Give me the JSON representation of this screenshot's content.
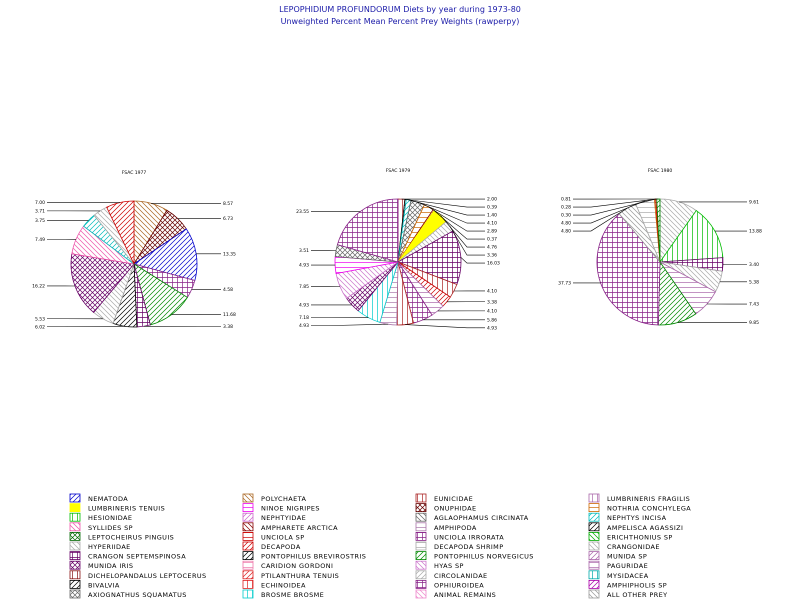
{
  "header": {
    "title": "LEPOPHIDIUM PROFUNDORUM Diets by year during 1973-80",
    "subtitle": "Unweighted Percent Mean Percent Prey Weights (rawperpy)"
  },
  "chart_data": [
    {
      "type": "pie",
      "title": "FSAC 1977",
      "slices": [
        {
          "prey": "POLYCHAETA",
          "value": 8.57,
          "label": "8.57"
        },
        {
          "prey": "ONUPHIDAE",
          "value": 6.73,
          "label": "6.73"
        },
        {
          "prey": "NEMATODA",
          "value": 13.35,
          "label": "13.35"
        },
        {
          "prey": "UNCIOLA IRRORATA",
          "value": 4.58,
          "label": "4.58"
        },
        {
          "prey": "PONTOPHILUS NORVEGICUS",
          "value": 11.68,
          "label": "11.68"
        },
        {
          "prey": "CRANGON SEPTEMSPINOSA",
          "value": 3.38,
          "label": "3.38"
        },
        {
          "prey": "BIVALVIA",
          "value": 6.02,
          "label": "6.02"
        },
        {
          "prey": "HYPERIIDAE",
          "value": 5.53,
          "label": "5.53"
        },
        {
          "prey": "MUNIDA IRIS",
          "value": 16.22,
          "label": "16.22"
        },
        {
          "prey": "SYLLIDES SP",
          "value": 7.49,
          "label": "7.49"
        },
        {
          "prey": "NEPHTYS INCISA",
          "value": 3.75,
          "label": "3.75"
        },
        {
          "prey": "CRANGONIDAE",
          "value": 3.71,
          "label": "3.71"
        },
        {
          "prey": "DECAPODA",
          "value": 7.0,
          "label": "7.00"
        }
      ]
    },
    {
      "type": "pie",
      "title": "FSAC 1979",
      "slices": [
        {
          "prey": "EUNICIDAE",
          "value": 2.0,
          "label": "2.00"
        },
        {
          "prey": "PONTOPHILUS BREVIROSTRIS",
          "value": 0.39,
          "label": "0.39"
        },
        {
          "prey": "NEPHTYS INCISA",
          "value": 1.4,
          "label": "1.40"
        },
        {
          "prey": "AXIOGNATHUS SQUAMATUS",
          "value": 4.1,
          "label": "4.10"
        },
        {
          "prey": "NOTHRIA CONCHYLEGA",
          "value": 2.89,
          "label": "2.89"
        },
        {
          "prey": "AMPHARETE ARCTICA",
          "value": 0.37,
          "label": "0.37"
        },
        {
          "prey": "LUMBRINERIS TENUIS",
          "value": 4.76,
          "label": "4.76"
        },
        {
          "prey": "CRANGONIDAE",
          "value": 3.36,
          "label": "3.36"
        },
        {
          "prey": "CRANGON SEPTEMSPINOSA",
          "value": 16.03,
          "label": "16.03"
        },
        {
          "prey": "EUNICIDAE",
          "value": 4.1,
          "label": "4.10"
        },
        {
          "prey": "DECAPODA",
          "value": 3.38,
          "label": "3.38"
        },
        {
          "prey": "PAGURIDAE",
          "value": 4.1,
          "label": "4.10"
        },
        {
          "prey": "UNCIOLA IRRORATA",
          "value": 5.86,
          "label": "5.86"
        },
        {
          "prey": "EUNICIDAE",
          "value": 4.93,
          "label": "4.93"
        },
        {
          "prey": "AMPHIPODA",
          "value": 4.93,
          "label": "4.93"
        },
        {
          "prey": "BROSME BROSME",
          "value": 7.18,
          "label": "7.18"
        },
        {
          "prey": "MUNIDA IRIS",
          "value": 4.93,
          "label": "4.93"
        },
        {
          "prey": "HYAS SP",
          "value": 7.85,
          "label": "7.85"
        },
        {
          "prey": "NINOE NIGRIPES",
          "value": 4.93,
          "label": "4.93"
        },
        {
          "prey": "AXIOGNATHUS SQUAMATUS",
          "value": 3.51,
          "label": "3.51"
        },
        {
          "prey": "UNCIOLA IRRORATA",
          "value": 23.55,
          "label": "23.55"
        }
      ]
    },
    {
      "type": "pie",
      "title": "FSAC 1980",
      "slices": [
        {
          "prey": "HYPERIIDAE",
          "value": 9.61,
          "label": "9.61"
        },
        {
          "prey": "HESIONIDAE",
          "value": 13.88,
          "label": "13.88"
        },
        {
          "prey": "CRANGON SEPTEMSPINOSA",
          "value": 3.4,
          "label": "3.40"
        },
        {
          "prey": "CRANGONIDAE",
          "value": 5.38,
          "label": "5.38"
        },
        {
          "prey": "PAGURIDAE",
          "value": 7.43,
          "label": "7.43"
        },
        {
          "prey": "PONTOPHILUS NORVEGICUS",
          "value": 9.85,
          "label": "9.85"
        },
        {
          "prey": "UNCIOLA IRRORATA",
          "value": 37.73,
          "label": "37.73"
        },
        {
          "prey": "ALL OTHER PREY",
          "value": 4.8,
          "label": "4.80"
        },
        {
          "prey": "DECAPODA SHRIMP",
          "value": 4.8,
          "label": "4.80"
        },
        {
          "prey": "NOTHRIA CONCHYLEGA",
          "value": 0.3,
          "label": "0.30"
        },
        {
          "prey": "UNCIOLA SP",
          "value": 0.28,
          "label": "0.28"
        },
        {
          "prey": "PONTOPHILUS NORVEGICUS",
          "value": 0.81,
          "label": "0.81"
        }
      ]
    }
  ],
  "legend": [
    {
      "name": "NEMATODA",
      "color": "#0000cc",
      "pattern": "hatch45"
    },
    {
      "name": "LUMBRINERIS TENUIS",
      "color": "#ffff00",
      "pattern": "solid"
    },
    {
      "name": "HESIONIDAE",
      "color": "#00bb00",
      "pattern": "vert"
    },
    {
      "name": "SYLLIDES SP",
      "color": "#ee55aa",
      "pattern": "hatch135"
    },
    {
      "name": "LEPTOCHEIRUS PINGUIS",
      "color": "#006600",
      "pattern": "cross"
    },
    {
      "name": "HYPERIIDAE",
      "color": "#aaaaaa",
      "pattern": "hatch135"
    },
    {
      "name": "CRANGON SEPTEMSPINOSA",
      "color": "#660066",
      "pattern": "grid"
    },
    {
      "name": "MUNIDA IRIS",
      "color": "#660066",
      "pattern": "cross"
    },
    {
      "name": "DICHELOPANDALUS LEPTOCERUS",
      "color": "#881111",
      "pattern": "vert"
    },
    {
      "name": "BIVALVIA",
      "color": "#000000",
      "pattern": "hatch45"
    },
    {
      "name": "AXIOGNATHUS SQUAMATUS",
      "color": "#666666",
      "pattern": "cross"
    },
    {
      "name": "POLYCHAETA",
      "color": "#aa6622",
      "pattern": "hatch135"
    },
    {
      "name": "NINOE NIGRIPES",
      "color": "#ee00ee",
      "pattern": "horiz"
    },
    {
      "name": "NEPHTYIDAE",
      "color": "#cc66cc",
      "pattern": "hatch45"
    },
    {
      "name": "AMPHARETE ARCTICA",
      "color": "#880000",
      "pattern": "hatch135"
    },
    {
      "name": "UNCIOLA SP",
      "color": "#cc0000",
      "pattern": "horiz"
    },
    {
      "name": "DECAPODA",
      "color": "#cc0000",
      "pattern": "hatch45"
    },
    {
      "name": "PONTOPHILUS BREVIROSTRIS",
      "color": "#000000",
      "pattern": "hatch45"
    },
    {
      "name": "CARIDION GORDONI",
      "color": "#ee77aa",
      "pattern": "horiz"
    },
    {
      "name": "PTILANTHURA TENUIS",
      "color": "#dd2222",
      "pattern": "hatch45"
    },
    {
      "name": "ECHINOIDEA",
      "color": "#dd2222",
      "pattern": "vert"
    },
    {
      "name": "BROSME BROSME",
      "color": "#00cccc",
      "pattern": "vert"
    },
    {
      "name": "EUNICIDAE",
      "color": "#aa2222",
      "pattern": "vert"
    },
    {
      "name": "ONUPHIDAE",
      "color": "#660000",
      "pattern": "cross"
    },
    {
      "name": "AGLAOPHAMUS CIRCINATA",
      "color": "#666666",
      "pattern": "hatch135"
    },
    {
      "name": "AMPHIPODA",
      "color": "#aa77aa",
      "pattern": "horiz"
    },
    {
      "name": "UNCIOLA IRRORATA",
      "color": "#882288",
      "pattern": "grid"
    },
    {
      "name": "DECAPODA SHRIMP",
      "color": "#aaaaaa",
      "pattern": "horiz"
    },
    {
      "name": "PONTOPHILUS NORVEGICUS",
      "color": "#008800",
      "pattern": "hatch45"
    },
    {
      "name": "HYAS SP",
      "color": "#cc77cc",
      "pattern": "hatch135"
    },
    {
      "name": "CIRCOLANIDAE",
      "color": "#aaaaaa",
      "pattern": "hatch45"
    },
    {
      "name": "OPHIUROIDEA",
      "color": "#882288",
      "pattern": "grid"
    },
    {
      "name": "ANIMAL REMAINS",
      "color": "#ee88cc",
      "pattern": "hatch135"
    },
    {
      "name": "LUMBRINERIS FRAGILIS",
      "color": "#aa66aa",
      "pattern": "vert"
    },
    {
      "name": "NOTHRIA CONCHYLEGA",
      "color": "#cc6600",
      "pattern": "horiz"
    },
    {
      "name": "NEPHTYS INCISA",
      "color": "#00bbbb",
      "pattern": "hatch45"
    },
    {
      "name": "AMPELISCA AGASSIZI",
      "color": "#000000",
      "pattern": "hatch45"
    },
    {
      "name": "ERICHTHONIUS SP",
      "color": "#00aa00",
      "pattern": "hatch135"
    },
    {
      "name": "CRANGONIDAE",
      "color": "#aaaaaa",
      "pattern": "hatch135"
    },
    {
      "name": "MUNIDA SP",
      "color": "#aa66aa",
      "pattern": "hatch45"
    },
    {
      "name": "PAGURIDAE",
      "color": "#aa66aa",
      "pattern": "horiz"
    },
    {
      "name": "MYSIDACEA",
      "color": "#00aaaa",
      "pattern": "vert"
    },
    {
      "name": "AMPHIPHOLIS SP",
      "color": "#aa00aa",
      "pattern": "hatch45"
    },
    {
      "name": "ALL OTHER PREY",
      "color": "#999999",
      "pattern": "hatch135"
    }
  ]
}
